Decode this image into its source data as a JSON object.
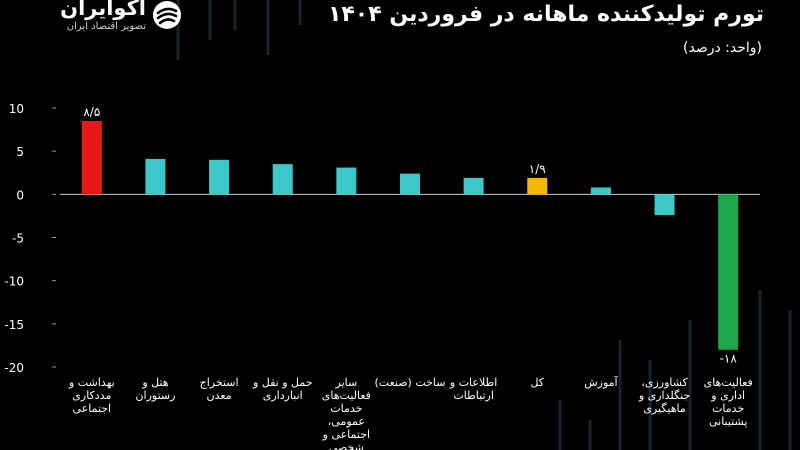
{
  "header": {
    "title": "تورم تولیدکننده ماهانه در فروردین ۱۴۰۴",
    "unit": "(واحد: درصد)"
  },
  "logo": {
    "name": "اکوایران",
    "tagline": "تصویر اقتصاد ایران",
    "icon": "swirl-logo-icon"
  },
  "colors": {
    "background": "#000000",
    "default_bar": "#3cc8c8",
    "highlight_max": "#e81818",
    "highlight_total": "#f5b800",
    "highlight_min": "#1aa84a",
    "decor_lines": "#16242b"
  },
  "chart_data": {
    "type": "bar",
    "title": "تورم تولیدکننده ماهانه در فروردین ۱۴۰۴",
    "ylim": [
      -20,
      10
    ],
    "yticks": [
      10,
      5,
      0,
      -5,
      -10,
      -15,
      -20
    ],
    "ytick_labels": [
      "10",
      "5",
      "0",
      "-5",
      "-10",
      "-15",
      "-20"
    ],
    "grid": false,
    "categories": [
      "بهداشت و مددکاری اجتماعی",
      "هتل و رستوران",
      "استخراج معدن",
      "حمل و نقل و انبارداری",
      "سایر فعالیت‌های خدمات عمومی، اجتماعی و شخصی",
      "ساخت (صنعت)",
      "اطلاعات و ارتباطات",
      "کل",
      "آموزش",
      "کشاورزی، جنگلداری و ماهیگیری",
      "فعالیت‌های اداری و خدمات پشتیبانی"
    ],
    "values": [
      8.5,
      4.1,
      4.0,
      3.5,
      3.1,
      2.4,
      1.9,
      1.9,
      0.8,
      -2.4,
      -18.0
    ],
    "bar_colors": [
      "#e81818",
      "#3cc8c8",
      "#3cc8c8",
      "#3cc8c8",
      "#3cc8c8",
      "#3cc8c8",
      "#3cc8c8",
      "#f5b800",
      "#3cc8c8",
      "#3cc8c8",
      "#1aa84a"
    ],
    "data_labels": [
      "۸/۵",
      "",
      "",
      "",
      "",
      "",
      "",
      "۱/۹",
      "",
      "",
      "-۱۸"
    ]
  }
}
